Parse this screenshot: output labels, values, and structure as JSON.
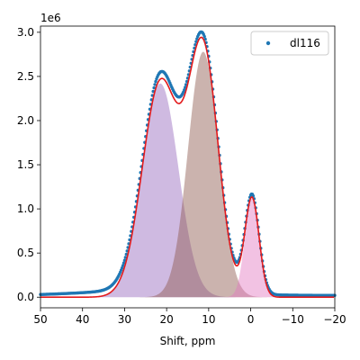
{
  "chart_data": {
    "type": "scatter",
    "title": "",
    "xlabel": "Shift, ppm",
    "ylabel": "",
    "y_offset_label": "1e6",
    "xlim": [
      50,
      -20
    ],
    "ylim": [
      -0.12,
      3.07
    ],
    "x_reversed": true,
    "x_ticks": [
      50,
      40,
      30,
      20,
      10,
      0,
      -10,
      -20
    ],
    "x_tick_labels": [
      "50",
      "40",
      "30",
      "20",
      "10",
      "0",
      "−10",
      "−20"
    ],
    "y_ticks": [
      0.0,
      0.5,
      1.0,
      1.5,
      2.0,
      2.5,
      3.0
    ],
    "y_tick_labels": [
      "0.0",
      "0.5",
      "1.0",
      "1.5",
      "2.0",
      "2.5",
      "3.0"
    ],
    "grid": false,
    "legend": {
      "position": "top-right",
      "entries": [
        "dl116"
      ]
    },
    "series": [
      {
        "name": "dl116",
        "kind": "scatter",
        "color": "#1f77b4",
        "baseline": 0.02,
        "extra_tail": {
          "amp": 0.06,
          "center": 24,
          "sigma": 14
        }
      },
      {
        "kind": "fit-line",
        "color": "#e31a1c"
      },
      {
        "kind": "component",
        "color": "#9467bd",
        "amp": 2.42,
        "center": 21.5,
        "sigma": 4.3
      },
      {
        "kind": "component",
        "color": "#8c564b",
        "amp": 2.78,
        "center": 11.3,
        "sigma": 3.6
      },
      {
        "kind": "component",
        "color": "#e377c2",
        "amp": 1.12,
        "center": -0.3,
        "sigma": 1.7
      }
    ]
  }
}
